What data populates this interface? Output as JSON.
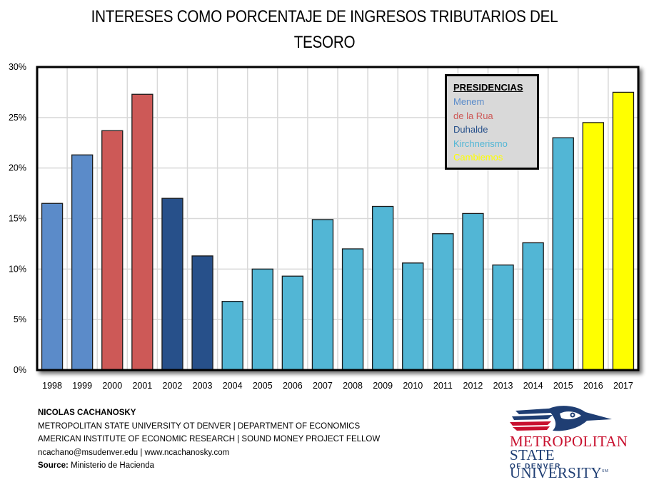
{
  "chart_data": {
    "type": "bar",
    "title": "INTERESES COMO PORCENTAJE DE INGRESOS TRIBUTARIOS DEL TESORO",
    "title_lines": [
      "INTERESES COMO PORCENTAJE DE INGRESOS TRIBUTARIOS DEL",
      "TESORO"
    ],
    "xlabel": "",
    "ylabel": "",
    "categories": [
      "1998",
      "1999",
      "2000",
      "2001",
      "2002",
      "2003",
      "2004",
      "2005",
      "2006",
      "2007",
      "2008",
      "2009",
      "2010",
      "2011",
      "2012",
      "2013",
      "2014",
      "2015",
      "2016",
      "2017"
    ],
    "values": [
      16.5,
      21.3,
      23.7,
      27.3,
      17.0,
      11.3,
      6.8,
      10.0,
      9.3,
      14.9,
      12.0,
      16.2,
      10.6,
      13.5,
      15.5,
      10.4,
      12.6,
      23.0,
      24.5,
      27.5
    ],
    "groups": [
      "Menem",
      "Menem",
      "de la Rua",
      "de la Rua",
      "Duhalde",
      "Duhalde",
      "Kirchnerismo",
      "Kirchnerismo",
      "Kirchnerismo",
      "Kirchnerismo",
      "Kirchnerismo",
      "Kirchnerismo",
      "Kirchnerismo",
      "Kirchnerismo",
      "Kirchnerismo",
      "Kirchnerismo",
      "Kirchnerismo",
      "Kirchnerismo",
      "Cambiemos",
      "Cambiemos"
    ],
    "ylim": [
      0,
      30
    ],
    "yticks": [
      0,
      5,
      10,
      15,
      20,
      25,
      30
    ],
    "ytick_labels": [
      "0%",
      "5%",
      "10%",
      "15%",
      "20%",
      "25%",
      "30%"
    ],
    "grid": true,
    "legend": {
      "title": "PRESIDENCIAS",
      "placement": "top-right",
      "entries": [
        {
          "name": "Menem",
          "color": "#5b8bc9"
        },
        {
          "name": "de la Rua",
          "color": "#cd5957"
        },
        {
          "name": "Duhalde",
          "color": "#27508a"
        },
        {
          "name": "Kirchnerismo",
          "color": "#52b6d5"
        },
        {
          "name": "Cambiemos",
          "color": "#ffff00"
        }
      ]
    }
  },
  "footer": {
    "author": "NICOLAS CACHANOSKY",
    "line2": "METROPOLITAN STATE UNIVERSITY OT DENVER | DEPARTMENT OF ECONOMICS",
    "line3": "AMERICAN INSTITUTE OF ECONOMIC RESEARCH | SOUND MONEY PROJECT FELLOW",
    "line4": "ncachano@msudenver.edu  | www.ncachanosky.com",
    "source_label": "Source:",
    "source_value": " Ministerio de Hacienda"
  },
  "logo": {
    "line1": "METROPOLITAN",
    "line2": "STATE UNIVERSITY",
    "trademark": "SM",
    "line3": "OF DENVER",
    "icon": "roadrunner-icon"
  }
}
